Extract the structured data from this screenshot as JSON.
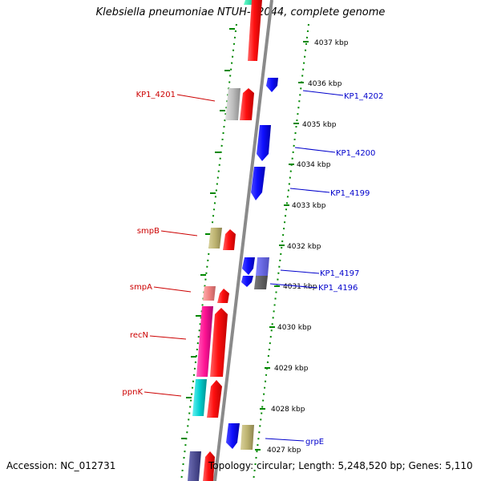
{
  "title": "Klebsiella pneumoniae NTUH-K2044, complete genome",
  "footer": {
    "accession": "Accession: NC_012731",
    "topology": "Topology: circular; Length: 5,248,520 bp; Genes: 5,110"
  },
  "ruler_ticks": [
    "4037 kbp",
    "4036 kbp",
    "4035 kbp",
    "4034 kbp",
    "4033 kbp",
    "4032 kbp",
    "4031 kbp",
    "4030 kbp",
    "4029 kbp",
    "4028 kbp",
    "4027 kbp"
  ],
  "left_labels": [
    "KP1_4201",
    "smpB",
    "smpA",
    "recN",
    "ppnK"
  ],
  "right_labels": [
    "KP1_4202",
    "KP1_4200",
    "KP1_4199",
    "KP1_4197",
    "KP1_4196",
    "grpE"
  ],
  "colors": {
    "forward_strand": "#ff0000",
    "reverse_strand": "#0000ff",
    "left_label": "#cc0000",
    "right_label": "#0000cc",
    "tick_dots": "#008800",
    "backbone": "#888888"
  }
}
